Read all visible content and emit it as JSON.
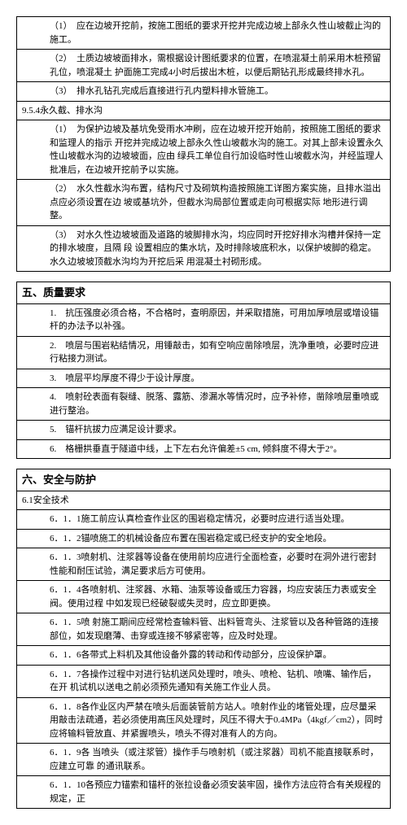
{
  "table1": {
    "rows": [
      "（1）　应在边坡开挖前，按施工图纸的要求开挖并完成边坡上部永久性山坡截止沟的施工。",
      "（2）　土质边坡坡面排水，需根据设计图纸要求的位置，在喷混凝土前采用木桩预留孔位，喷混凝土 护面施工完成4小时后拔出木桩，以便后期钻孔形成最终排水孔。",
      "（3）　排水孔钻孔完成后直接进行孔内塑料排水管施工。"
    ],
    "subheader": "9.5.4永久截、排水沟",
    "rows2": [
      "（1）　为保护边坡及基坑免受雨水冲刷，应在边坡开挖开始前，按照施工图纸的要求和监理人的指示 开挖并完成边坡上部永久性山坡截水沟的施工。对其上部未设置永久性山坡截水沟的边坡坡面，应由 绿兵工单位自行加设临时性山坡截水沟，并经监理人批准后，在边坡开挖前予以实施。",
      "（2）　水久性截水沟布置，结构尺寸及砌筑构造按照施工详图方案实施，且排水溢出点应必须设置在边 坡或基坑外，但截水沟局部位置或走向可根据实际 地形进行调整。",
      "（3）　对水久性边坡坡面及道路的坡脚排水沟，均应同时开挖好排水沟槽并保持一定的排水坡度，且隔 段 设置相应的集水坑，及时排除坡底积水，以保护坡脚的稳定。水久边坡坡顶截水沟均为开挖后采 用混凝土衬砌形成。"
    ]
  },
  "section5": {
    "title": "五、质量要求",
    "rows": [
      "1.　抗压强度必须合格，不合格时，查明原因，并采取措施，可用加厚喷层或增设锚杆的办法予以补强。",
      "2.　喷层与围岩粘结情况，用锤敲击，如有空响应凿除喷层，洗净重喷，必要时应进行粘接力测试。",
      "3.　喷层平均厚度不得少于设计厚度。",
      "4.　喷射砼表面有裂缝、脱落、露筋、渗漏水等情况时，应予补修，凿除喷层重喷或进行整治。",
      "5.　锚杆抗拔力应满足设计要求。",
      "6.　格栅拱垂直于隧道中线，上下左右允许偏差±5 cm, 倾斜度不得大于2°。"
    ]
  },
  "section6": {
    "title": "六、安全与防护",
    "subtitle": "6.1安全技术",
    "rows": [
      "6．1．1施工前应认真检查作业区的围岩稳定情况，必要时应进行适当处理。",
      "6．1．2锚喷施工的机械设备应布置在围岩稳定或已经支护的安全地段。",
      "6．1．3喷射机、注浆器等设备在使用前均应进行全面检查，必要时在洞外进行密封性能和耐压试验，满足要求后方可使用。",
      "6．1．4各喷射机、注浆器、水箱、油泵等设备或压力容器，均应安装压力表或安全阀。使用过程 中如发现已经破裂或失灵时，应立即更换。",
      "6．1．5喷 射施工期间应经常检查输料管、出料管弯头、注浆管以及各种管路的连接部位，如发现磨薄、击穿或连接不够紧密等，应及时处理。",
      "6．1．6各带式上料机及其他设备外露的转动和传动部分，应设保护罩。",
      "6．1．7各操作过程中对进行钻机送风处理时，喷头、喷枪、钻机、喷嘴、输作后，在开 机试机以送电之前必须预先通知有关施工作业人员。",
      "6．1．8各作业区内严禁在喷头后面装管前方站人。喷射作业的堵管处理，应尽量采用敲击法疏通，若必须使用高压风处理时，风压不得大于0.4MPa（4kgf／cm2），同时应将输料管放直、并紧握喷头，喷头不得对准有人的方向。",
      "6．1．9各 当喷头（或注浆管）操作手与喷射机（或注浆器）司机不能直接联系时，应建立可靠 的通讯联系。",
      "6．1．10各预应力锚索和锚杆的张拉设备必须安装牢固，操作方法应符合有关规程的规定，正"
    ]
  }
}
